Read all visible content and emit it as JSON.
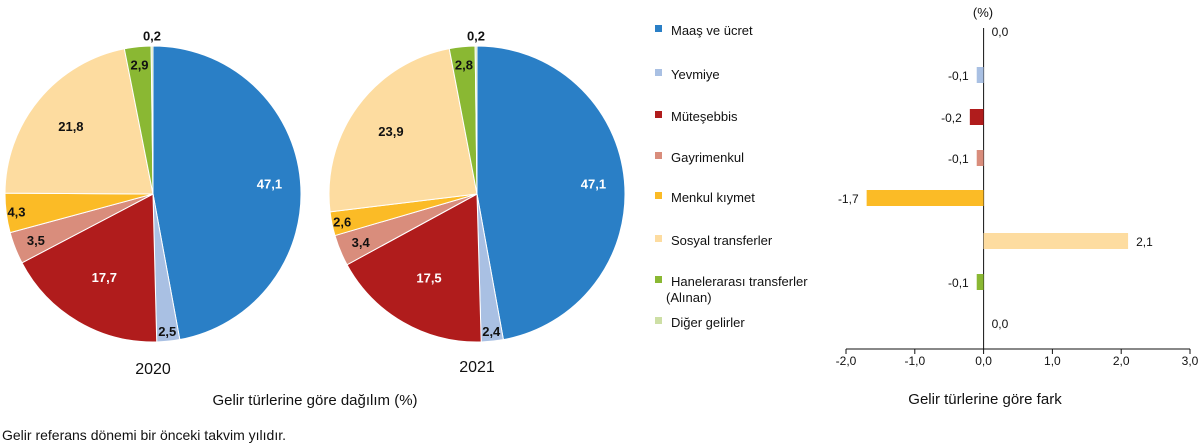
{
  "chart_data": [
    {
      "type": "pie",
      "title": "2020",
      "categories": [
        "Maaş ve ücret",
        "Yevmiye",
        "Müteşebbis",
        "Gayrimenkul",
        "Menkul kıymet",
        "Sosyal transferler",
        "Hanelerarası transferler (Alınan)",
        "Diğer gelirler"
      ],
      "values": [
        47.1,
        2.5,
        17.7,
        3.5,
        4.3,
        21.8,
        2.9,
        0.2
      ],
      "labels": [
        "47,1",
        "2,5",
        "17,7",
        "3,5",
        "4,3",
        "21,8",
        "2,9",
        "0,2"
      ]
    },
    {
      "type": "pie",
      "title": "2021",
      "categories": [
        "Maaş ve ücret",
        "Yevmiye",
        "Müteşebbis",
        "Gayrimenkul",
        "Menkul kıymet",
        "Sosyal transferler",
        "Hanelerarası transferler (Alınan)",
        "Diğer gelirler"
      ],
      "values": [
        47.1,
        2.4,
        17.5,
        3.4,
        2.6,
        23.9,
        2.8,
        0.2
      ],
      "labels": [
        "47,1",
        "2,4",
        "17,5",
        "3,4",
        "2,6",
        "23,9",
        "2,8",
        "0,2"
      ]
    },
    {
      "type": "bar",
      "orientation": "horizontal",
      "title": "Gelir türlerine göre fark",
      "unit_label": "(%)",
      "categories": [
        "Maaş ve ücret",
        "Yevmiye",
        "Müteşebbis",
        "Gayrimenkul",
        "Menkul kıymet",
        "Sosyal transferler",
        "Hanelerarası transferler (Alınan)",
        "Diğer gelirler"
      ],
      "values": [
        0.0,
        -0.1,
        -0.2,
        -0.1,
        -1.7,
        2.1,
        -0.1,
        0.0
      ],
      "labels": [
        "0,0",
        "-0,1",
        "-0,2",
        "-0,1",
        "-1,7",
        "2,1",
        "-0,1",
        "0,0"
      ],
      "xlim": [
        -2.0,
        3.0
      ],
      "xticks": [
        -2,
        -1,
        0,
        1,
        2,
        3
      ],
      "xtick_labels": [
        "-2,0",
        "-1,0",
        "0,0",
        "1,0",
        "2,0",
        "3,0"
      ],
      "grid": false
    }
  ],
  "legend": {
    "items": [
      "Maaş ve ücret",
      "Yevmiye",
      "Müteşebbis",
      "Gayrimenkul",
      "Menkul kıymet",
      "Sosyal transferler",
      "Hanelerarası transferler",
      "Diğer gelirler"
    ],
    "item7_line2": "(Alınan)"
  },
  "colors": [
    "#2a7fc6",
    "#a9c0e3",
    "#b01c1c",
    "#d98d7c",
    "#fbbb26",
    "#fddca0",
    "#8ab833",
    "#cddfa5"
  ],
  "pie_caption": "Gelir türlerine göre dağılım (%)",
  "footnote": "Gelir referans dönemi bir önceki takvim yılıdır."
}
